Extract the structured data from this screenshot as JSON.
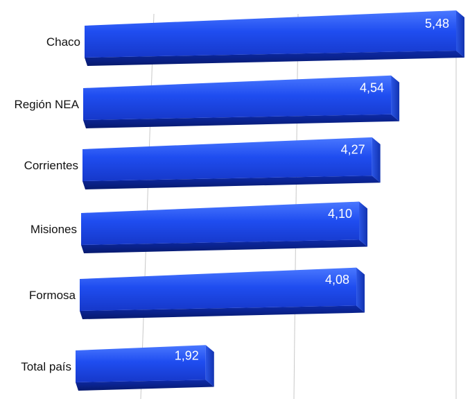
{
  "chart_data": {
    "type": "bar",
    "orientation": "horizontal",
    "title": "",
    "xlabel": "",
    "ylabel": "",
    "categories": [
      "Chaco",
      "Región NEA",
      "Corrientes",
      "Misiones",
      "Formosa",
      "Total país"
    ],
    "values": [
      5.48,
      4.54,
      4.27,
      4.1,
      4.08,
      1.92
    ],
    "value_labels": [
      "5,48",
      "4,54",
      "4,27",
      "4,10",
      "4,08",
      "1,92"
    ],
    "xlim": [
      0,
      5.48
    ],
    "grid": true,
    "legend": "none",
    "bar_style": "3d",
    "colors": {
      "bar_front": "#1a47e8",
      "bar_front_light": "#3c6cff",
      "bar_bottom": "#0a1f8a",
      "bar_end": "#1536b8",
      "label_text": "#111111",
      "value_text": "#ffffff",
      "grid": "#c8c8c8"
    }
  }
}
